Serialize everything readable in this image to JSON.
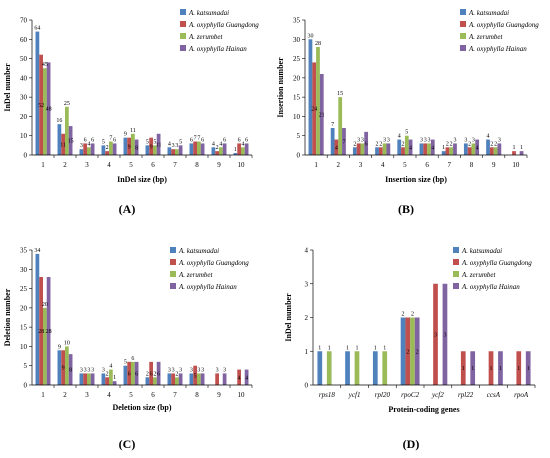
{
  "figure": {
    "colors": [
      "#4F81BD",
      "#C0504D",
      "#9BBB59",
      "#8064A2"
    ],
    "legend": [
      "A. katsumadai",
      "A. oxyphylla Guangdong",
      "A. zerumbet",
      "A. oxyphylla Hainan"
    ]
  },
  "chart_data": [
    {
      "type": "bar",
      "caption": "(A)",
      "xlabel": "InDel  size (bp)",
      "ylabel": "InDel number",
      "ylim": [
        0,
        70
      ],
      "yticks": [
        0,
        10,
        20,
        30,
        40,
        50,
        60,
        70
      ],
      "categories": [
        "1",
        "2",
        "3",
        "4",
        "5",
        "6",
        "7",
        "8",
        "9",
        "10"
      ],
      "grid": false,
      "legend_position": "top-right",
      "series": [
        {
          "name": "A. katsumadai",
          "values": [
            64,
            16,
            3,
            5,
            9,
            5,
            4,
            6,
            4,
            1
          ]
        },
        {
          "name": "A. oxyphylla Guangdong",
          "values": [
            52,
            11,
            6,
            2,
            9,
            9,
            3,
            7,
            2,
            6
          ]
        },
        {
          "name": "A. zerumbet",
          "values": [
            45,
            25,
            4,
            7,
            11,
            5,
            3,
            7,
            4,
            4
          ]
        },
        {
          "name": "A. oxyphylla Hainan",
          "values": [
            48,
            15,
            6,
            6,
            8,
            11,
            5,
            6,
            6,
            6
          ]
        }
      ],
      "labels": [
        [
          "64",
          "16",
          "3",
          "5",
          "9",
          "5",
          "4",
          "6",
          "4",
          "1"
        ],
        [
          "52",
          "11",
          "6",
          "2",
          "9",
          "9",
          "3",
          "7",
          "2",
          "6"
        ],
        [
          "45",
          "25",
          "4",
          "7",
          "11",
          "5",
          "3",
          "7",
          "4",
          "4"
        ],
        [
          "48",
          "15",
          "6",
          "6",
          "8",
          "11",
          "5",
          "6",
          "6",
          "6"
        ]
      ]
    },
    {
      "type": "bar",
      "caption": "(B)",
      "xlabel": "Insertion size (bp)",
      "ylabel": "Insertion number",
      "ylim": [
        0,
        35
      ],
      "yticks": [
        0,
        5,
        10,
        15,
        20,
        25,
        30,
        35
      ],
      "categories": [
        "1",
        "2",
        "3",
        "4",
        "5",
        "6",
        "7",
        "8",
        "9",
        "10"
      ],
      "grid": false,
      "legend_position": "top-right",
      "series": [
        {
          "name": "A. katsumadai",
          "values": [
            30,
            7,
            2,
            2,
            4,
            3,
            1,
            3,
            4,
            0
          ]
        },
        {
          "name": "A. oxyphylla Guangdong",
          "values": [
            24,
            4,
            3,
            2,
            2,
            3,
            2,
            2,
            2,
            1
          ]
        },
        {
          "name": "A. zerumbet",
          "values": [
            28,
            15,
            3,
            3,
            5,
            3,
            2,
            3,
            2,
            0
          ]
        },
        {
          "name": "A. oxyphylla Hainan",
          "values": [
            21,
            7,
            6,
            3,
            4,
            4,
            3,
            4,
            3,
            1
          ]
        }
      ],
      "labels": [
        [
          "30",
          "7",
          "2",
          "2",
          "4",
          "3",
          "1",
          "3",
          "4",
          ""
        ],
        [
          "24",
          "4",
          "3",
          "2",
          "2",
          "3",
          "2",
          "2",
          "2",
          "1"
        ],
        [
          "28",
          "15",
          "3",
          "3",
          "5",
          "3",
          "2",
          "3",
          "2",
          ""
        ],
        [
          "21",
          "7",
          "6",
          "3",
          "4",
          "4",
          "3",
          "4",
          "3",
          "1"
        ]
      ]
    },
    {
      "type": "bar",
      "caption": "(C)",
      "xlabel": "Deletion size (bp)",
      "ylabel": "Deletion number",
      "ylim": [
        0,
        35
      ],
      "yticks": [
        0,
        5,
        10,
        15,
        20,
        25,
        30,
        35
      ],
      "categories": [
        "1",
        "2",
        "3",
        "4",
        "5",
        "6",
        "7",
        "8",
        "9",
        "10"
      ],
      "grid": false,
      "legend_position": "top-right",
      "series": [
        {
          "name": "A. katsumadai",
          "values": [
            34,
            9,
            3,
            3,
            5,
            2,
            3,
            3,
            0,
            0
          ]
        },
        {
          "name": "A. oxyphylla Guangdong",
          "values": [
            28,
            9,
            3,
            2,
            6,
            6,
            3,
            5,
            3,
            4
          ]
        },
        {
          "name": "A. zerumbet",
          "values": [
            20,
            10,
            3,
            4,
            6,
            2,
            2,
            3,
            0,
            0
          ]
        },
        {
          "name": "A. oxyphylla Hainan",
          "values": [
            28,
            8,
            3,
            1,
            6,
            6,
            3,
            3,
            3,
            4
          ]
        }
      ],
      "labels": [
        [
          "34",
          "9",
          "3",
          "3",
          "5",
          "2",
          "3",
          "3",
          "",
          ""
        ],
        [
          "28",
          "9",
          "3",
          "2",
          "6",
          "6",
          "3",
          "5",
          "3",
          "4"
        ],
        [
          "20",
          "10",
          "3",
          "4",
          "6",
          "2",
          "2",
          "3",
          "",
          ""
        ],
        [
          "28",
          "8",
          "3",
          "1",
          "6",
          "6",
          "3",
          "3",
          "3",
          "4"
        ]
      ]
    },
    {
      "type": "bar",
      "caption": "(D)",
      "xlabel": "Protein-coding genes",
      "ylabel": "InDel number",
      "ylim": [
        0,
        4
      ],
      "yticks": [
        0,
        1,
        2,
        3,
        4
      ],
      "categories": [
        "rps18",
        "ycf1",
        "rpl20",
        "rpoC2",
        "ycf2",
        "rpl22",
        "ccsA",
        "rpoA"
      ],
      "grid": false,
      "legend_position": "top-right",
      "series": [
        {
          "name": "A. katsumadai",
          "values": [
            1,
            1,
            1,
            2,
            0,
            0,
            0,
            0
          ]
        },
        {
          "name": "A. oxyphylla Guangdong",
          "values": [
            0,
            0,
            0,
            2,
            3,
            1,
            1,
            1
          ]
        },
        {
          "name": "A. zerumbet",
          "values": [
            1,
            1,
            1,
            2,
            0,
            0,
            0,
            0
          ]
        },
        {
          "name": "A. oxyphylla Hainan",
          "values": [
            0,
            0,
            0,
            2,
            3,
            1,
            1,
            1
          ]
        }
      ],
      "labels": [
        [
          "1",
          "1",
          "1",
          "2",
          "",
          "",
          "",
          ""
        ],
        [
          "",
          "",
          "",
          "2",
          "3",
          "1",
          "1",
          "1"
        ],
        [
          "1",
          "1",
          "1",
          "2",
          "",
          "",
          "",
          ""
        ],
        [
          "",
          "",
          "",
          "2",
          "3",
          "1",
          "1",
          "1"
        ]
      ]
    }
  ]
}
